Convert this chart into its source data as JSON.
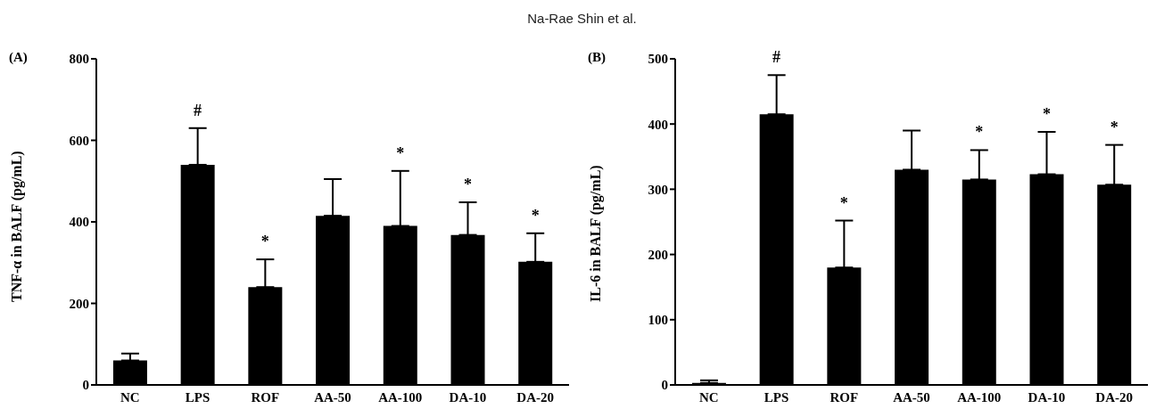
{
  "chart_data": [
    {
      "type": "bar",
      "title": "(A)",
      "ylabel": "TNF-α in BALF (pg/mL)",
      "categories": [
        "NC",
        "LPS",
        "ROF",
        "AA-50",
        "AA-100",
        "DA-10",
        "DA-20"
      ],
      "values": [
        60,
        540,
        240,
        415,
        390,
        368,
        302
      ],
      "color": "#000000",
      "errors": [
        [
          60,
          77
        ],
        [
          540,
          630
        ],
        [
          240,
          308
        ],
        [
          415,
          505
        ],
        [
          390,
          525
        ],
        [
          368,
          448
        ],
        [
          302,
          372
        ]
      ],
      "ylim": [
        0,
        800
      ],
      "yticks": [
        0,
        200,
        400,
        600,
        800
      ],
      "grid": false,
      "legend": false,
      "annotations": [
        "Na-Rae Shin et al.",
        {
          "text": "#",
          "x": "LPS",
          "y": 630
        },
        {
          "text": "*",
          "x": "ROF",
          "y": 308
        },
        {
          "text": "*",
          "x": "AA-100",
          "y": 525
        },
        {
          "text": "*",
          "x": "DA-10",
          "y": 448
        },
        {
          "text": "*",
          "x": "DA-20",
          "y": 372
        }
      ]
    },
    {
      "type": "bar",
      "title": "(B)",
      "ylabel": "IL-6 in BALF (pg/mL)",
      "categories": [
        "NC",
        "LPS",
        "ROF",
        "AA-50",
        "AA-100",
        "DA-10",
        "DA-20"
      ],
      "values": [
        3,
        415,
        180,
        330,
        315,
        323,
        307
      ],
      "color": "#000000",
      "errors": [
        [
          3,
          7
        ],
        [
          415,
          475
        ],
        [
          180,
          252
        ],
        [
          330,
          390
        ],
        [
          315,
          360
        ],
        [
          323,
          388
        ],
        [
          307,
          368
        ]
      ],
      "ylim": [
        0,
        500
      ],
      "yticks": [
        0,
        100,
        200,
        300,
        400,
        500
      ],
      "grid": false,
      "legend": false,
      "annotations": [
        {
          "text": "#",
          "x": "LPS",
          "y": 475
        },
        {
          "text": "*",
          "x": "ROF",
          "y": 252
        },
        {
          "text": "*",
          "x": "AA-100",
          "y": 360
        },
        {
          "text": "*",
          "x": "DA-10",
          "y": 388
        },
        {
          "text": "*",
          "x": "DA-20",
          "y": 368
        }
      ]
    }
  ]
}
